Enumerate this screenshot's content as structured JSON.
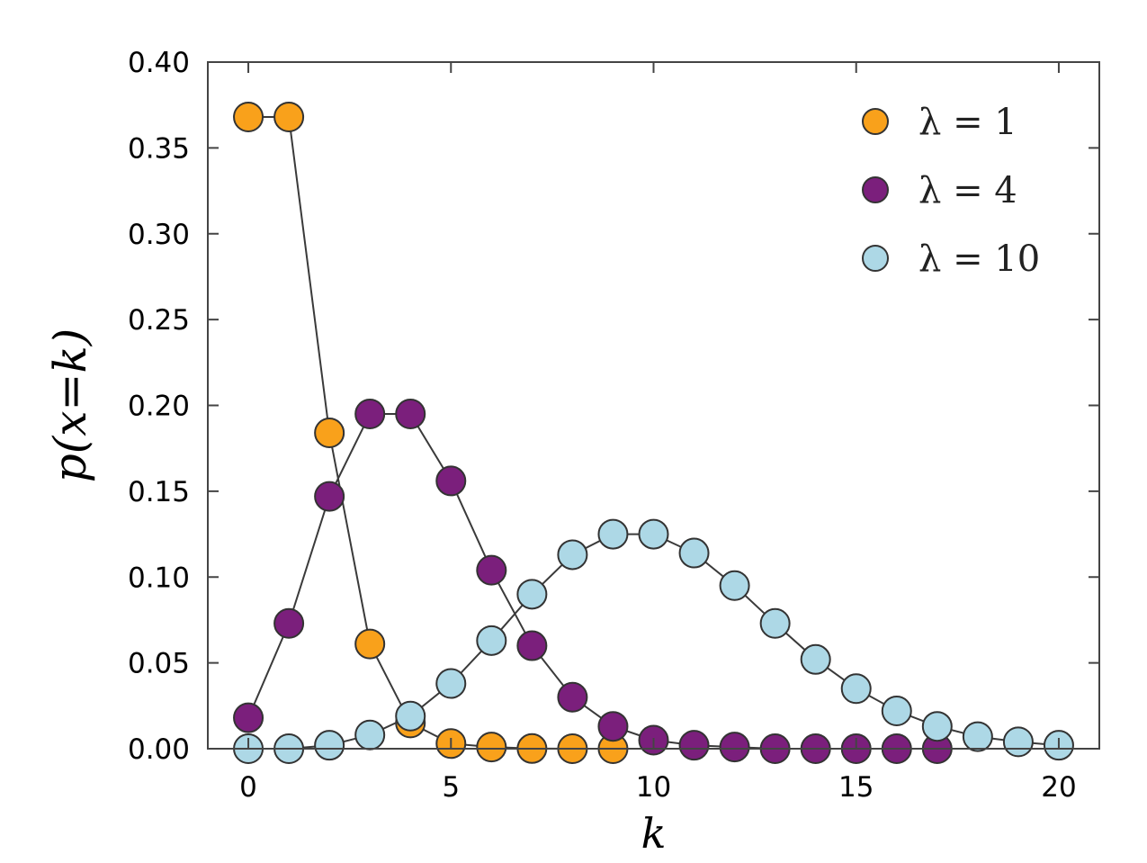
{
  "chart_data": {
    "type": "line",
    "xlabel": "k",
    "ylabel": "p(x=k)",
    "xlim": [
      -1,
      21
    ],
    "ylim": [
      0,
      0.4
    ],
    "xticks": [
      0,
      5,
      10,
      15,
      20
    ],
    "yticks": [
      0.0,
      0.05,
      0.1,
      0.15,
      0.2,
      0.25,
      0.3,
      0.35,
      0.4
    ],
    "xtick_labels": [
      "0",
      "5",
      "10",
      "15",
      "20"
    ],
    "ytick_labels": [
      "0.00",
      "0.05",
      "0.10",
      "0.15",
      "0.20",
      "0.25",
      "0.30",
      "0.35",
      "0.40"
    ],
    "grid": false,
    "legend_position": "top-right",
    "series": [
      {
        "name": "λ = 1",
        "color": "#F9A11B",
        "x": [
          0,
          1,
          2,
          3,
          4,
          5,
          6,
          7,
          8,
          9
        ],
        "y": [
          0.368,
          0.368,
          0.184,
          0.061,
          0.015,
          0.003,
          0.001,
          0.0001,
          0.0,
          0.0
        ]
      },
      {
        "name": "λ = 4",
        "color": "#7B1F7C",
        "x": [
          0,
          1,
          2,
          3,
          4,
          5,
          6,
          7,
          8,
          9,
          10,
          11,
          12,
          13,
          14,
          15,
          16,
          17
        ],
        "y": [
          0.018,
          0.073,
          0.147,
          0.195,
          0.195,
          0.156,
          0.104,
          0.06,
          0.03,
          0.013,
          0.005,
          0.002,
          0.001,
          0.0,
          0.0,
          0.0,
          0.0,
          0.0
        ]
      },
      {
        "name": "λ = 10",
        "color": "#ADD8E6",
        "x": [
          0,
          1,
          2,
          3,
          4,
          5,
          6,
          7,
          8,
          9,
          10,
          11,
          12,
          13,
          14,
          15,
          16,
          17,
          18,
          19,
          20
        ],
        "y": [
          0.0,
          0.0,
          0.002,
          0.008,
          0.019,
          0.038,
          0.063,
          0.09,
          0.113,
          0.125,
          0.125,
          0.114,
          0.095,
          0.073,
          0.052,
          0.035,
          0.022,
          0.013,
          0.007,
          0.004,
          0.002
        ]
      }
    ]
  }
}
